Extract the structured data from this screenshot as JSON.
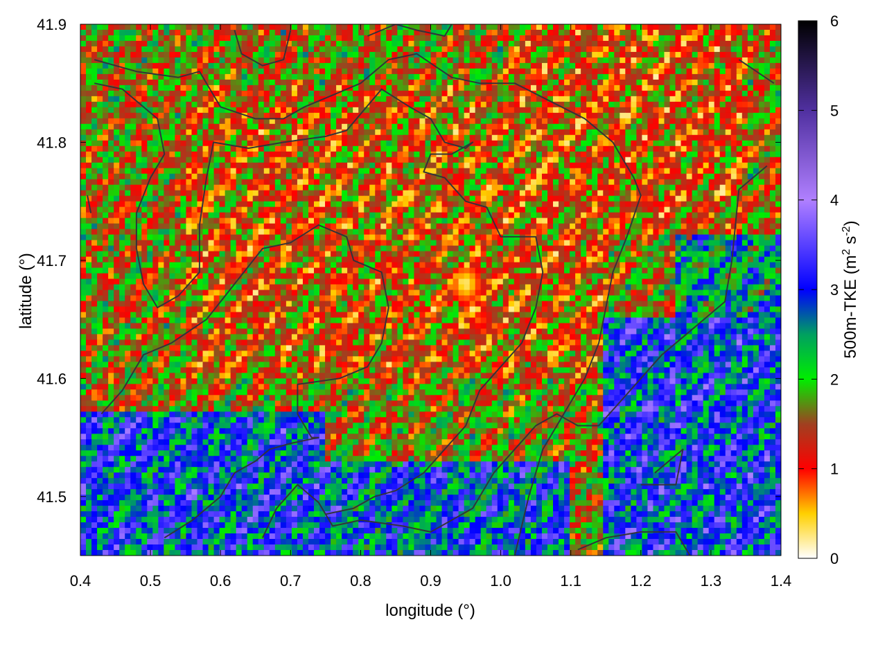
{
  "chart_data": {
    "type": "heatmap",
    "title": "",
    "xlabel": "longitude (°)",
    "ylabel": "latitude (°)",
    "xlim": [
      0.4,
      1.4
    ],
    "ylim": [
      41.45,
      41.9
    ],
    "x_ticks": [
      0.4,
      0.5,
      0.6,
      0.7,
      0.8,
      0.9,
      1.0,
      1.1,
      1.2,
      1.3,
      1.4
    ],
    "x_tick_labels": [
      "0.4",
      "0.5",
      "0.6",
      "0.7",
      "0.8",
      "0.9",
      "1.0",
      "1.1",
      "1.2",
      "1.3",
      "1.4"
    ],
    "y_ticks": [
      41.5,
      41.6,
      41.7,
      41.8,
      41.9
    ],
    "y_tick_labels": [
      "41.5",
      "41.6",
      "41.7",
      "41.8",
      "41.9"
    ],
    "colorbar": {
      "label_main": "500m-TKE (m",
      "label_sup1": "2",
      "label_mid": " s",
      "label_sup2": "-2",
      "label_end": ")",
      "range": [
        0,
        6
      ],
      "ticks": [
        0,
        1,
        2,
        3,
        4,
        5,
        6
      ],
      "tick_labels": [
        "0",
        "1",
        "2",
        "3",
        "4",
        "5",
        "6"
      ],
      "stops": [
        {
          "value": 0.0,
          "color": "#ffffff"
        },
        {
          "value": 0.5,
          "color": "#ffd000"
        },
        {
          "value": 1.0,
          "color": "#ff0000"
        },
        {
          "value": 1.5,
          "color": "#a04020"
        },
        {
          "value": 2.0,
          "color": "#00ee00"
        },
        {
          "value": 2.5,
          "color": "#00a060"
        },
        {
          "value": 3.0,
          "color": "#0000ff"
        },
        {
          "value": 4.0,
          "color": "#b080ff"
        },
        {
          "value": 5.0,
          "color": "#5030a0"
        },
        {
          "value": 6.0,
          "color": "#000000"
        }
      ]
    },
    "field_regions": [
      {
        "lon": [
          0.4,
          1.4
        ],
        "lat": [
          41.45,
          41.9
        ],
        "mean": 1.6
      },
      {
        "lon": [
          0.55,
          1.15
        ],
        "lat": [
          41.6,
          41.85
        ],
        "mean": 1.3
      },
      {
        "lon": [
          1.0,
          1.35
        ],
        "lat": [
          41.72,
          41.9
        ],
        "mean": 1.25
      },
      {
        "lon": [
          0.4,
          0.75
        ],
        "lat": [
          41.45,
          41.57
        ],
        "mean": 2.9
      },
      {
        "lon": [
          0.75,
          1.1
        ],
        "lat": [
          41.45,
          41.53
        ],
        "mean": 2.8
      },
      {
        "lon": [
          1.15,
          1.4
        ],
        "lat": [
          41.45,
          41.65
        ],
        "mean": 2.9
      },
      {
        "lon": [
          1.25,
          1.4
        ],
        "lat": [
          41.65,
          41.72
        ],
        "mean": 2.4
      }
    ],
    "hotspots": [
      {
        "lon": 0.95,
        "lat": 41.68,
        "value": 0.2
      },
      {
        "lon": 0.97,
        "lat": 41.65,
        "value": 0.7
      }
    ],
    "boundaries": [
      [
        [
          0.42,
          41.87
        ],
        [
          0.48,
          41.86
        ],
        [
          0.54,
          41.855
        ],
        [
          0.57,
          41.86
        ],
        [
          0.6,
          41.83
        ],
        [
          0.65,
          41.82
        ],
        [
          0.69,
          41.82
        ],
        [
          0.72,
          41.83
        ],
        [
          0.76,
          41.84
        ],
        [
          0.8,
          41.85
        ],
        [
          0.84,
          41.87
        ],
        [
          0.88,
          41.875
        ],
        [
          0.93,
          41.855
        ],
        [
          0.97,
          41.85
        ],
        [
          1.02,
          41.85
        ],
        [
          1.07,
          41.835
        ],
        [
          1.12,
          41.82
        ],
        [
          1.16,
          41.8
        ],
        [
          1.19,
          41.77
        ],
        [
          1.2,
          41.755
        ],
        [
          1.18,
          41.72
        ],
        [
          1.16,
          41.69
        ],
        [
          1.15,
          41.66
        ],
        [
          1.14,
          41.63
        ],
        [
          1.12,
          41.6
        ],
        [
          1.09,
          41.57
        ],
        [
          1.06,
          41.54
        ],
        [
          1.04,
          41.5
        ],
        [
          1.02,
          41.45
        ]
      ],
      [
        [
          0.42,
          41.85
        ],
        [
          0.46,
          41.845
        ],
        [
          0.51,
          41.82
        ],
        [
          0.52,
          41.79
        ],
        [
          0.5,
          41.77
        ],
        [
          0.48,
          41.74
        ],
        [
          0.48,
          41.71
        ],
        [
          0.49,
          41.68
        ],
        [
          0.51,
          41.66
        ],
        [
          0.54,
          41.67
        ],
        [
          0.57,
          41.69
        ],
        [
          0.57,
          41.73
        ],
        [
          0.58,
          41.77
        ],
        [
          0.59,
          41.8
        ],
        [
          0.64,
          41.795
        ],
        [
          0.69,
          41.8
        ],
        [
          0.75,
          41.805
        ],
        [
          0.78,
          41.81
        ],
        [
          0.83,
          41.845
        ],
        [
          0.87,
          41.83
        ],
        [
          0.9,
          41.82
        ],
        [
          0.92,
          41.8
        ],
        [
          0.95,
          41.795
        ],
        [
          0.96,
          41.8
        ],
        [
          0.93,
          41.79
        ],
        [
          0.9,
          41.79
        ],
        [
          0.89,
          41.775
        ],
        [
          0.92,
          41.77
        ],
        [
          0.95,
          41.75
        ],
        [
          0.98,
          41.745
        ],
        [
          1.0,
          41.72
        ],
        [
          1.05,
          41.72
        ],
        [
          1.06,
          41.69
        ],
        [
          1.05,
          41.66
        ],
        [
          1.03,
          41.63
        ],
        [
          1.0,
          41.61
        ],
        [
          0.97,
          41.59
        ],
        [
          0.95,
          41.56
        ],
        [
          0.92,
          41.54
        ],
        [
          0.89,
          41.52
        ],
        [
          0.85,
          41.505
        ],
        [
          0.82,
          41.5
        ],
        [
          0.79,
          41.49
        ],
        [
          0.75,
          41.485
        ]
      ],
      [
        [
          0.43,
          41.57
        ],
        [
          0.46,
          41.59
        ],
        [
          0.49,
          41.62
        ],
        [
          0.53,
          41.63
        ],
        [
          0.58,
          41.65
        ],
        [
          0.62,
          41.68
        ],
        [
          0.66,
          41.71
        ],
        [
          0.7,
          41.715
        ],
        [
          0.74,
          41.73
        ],
        [
          0.78,
          41.72
        ],
        [
          0.79,
          41.7
        ],
        [
          0.83,
          41.69
        ],
        [
          0.84,
          41.66
        ],
        [
          0.83,
          41.63
        ],
        [
          0.81,
          41.61
        ],
        [
          0.77,
          41.6
        ],
        [
          0.71,
          41.595
        ],
        [
          0.71,
          41.57
        ],
        [
          0.73,
          41.55
        ],
        [
          0.74,
          41.55
        ],
        [
          0.7,
          41.545
        ],
        [
          0.67,
          41.54
        ],
        [
          0.65,
          41.53
        ],
        [
          0.62,
          41.52
        ],
        [
          0.6,
          41.5
        ],
        [
          0.56,
          41.48
        ],
        [
          0.52,
          41.465
        ]
      ],
      [
        [
          0.66,
          41.465
        ],
        [
          0.68,
          41.49
        ],
        [
          0.71,
          41.51
        ],
        [
          0.74,
          41.495
        ],
        [
          0.76,
          41.475
        ],
        [
          0.8,
          41.48
        ],
        [
          0.86,
          41.475
        ],
        [
          0.9,
          41.47
        ],
        [
          0.93,
          41.48
        ],
        [
          0.96,
          41.49
        ],
        [
          0.99,
          41.52
        ],
        [
          1.02,
          41.54
        ],
        [
          1.05,
          41.56
        ],
        [
          1.08,
          41.57
        ],
        [
          1.11,
          41.56
        ],
        [
          1.14,
          41.56
        ],
        [
          1.17,
          41.58
        ],
        [
          1.2,
          41.6
        ],
        [
          1.23,
          41.62
        ],
        [
          1.26,
          41.635
        ],
        [
          1.29,
          41.65
        ],
        [
          1.32,
          41.665
        ],
        [
          1.33,
          41.7
        ],
        [
          1.34,
          41.76
        ],
        [
          1.38,
          41.78
        ]
      ],
      [
        [
          1.11,
          41.455
        ],
        [
          1.15,
          41.465
        ],
        [
          1.2,
          41.47
        ],
        [
          1.25,
          41.47
        ],
        [
          1.27,
          41.45
        ]
      ],
      [
        [
          1.2,
          41.51
        ],
        [
          1.25,
          41.51
        ],
        [
          1.26,
          41.54
        ],
        [
          1.24,
          41.53
        ],
        [
          1.22,
          41.52
        ]
      ],
      [
        [
          0.62,
          41.895
        ],
        [
          0.63,
          41.875
        ],
        [
          0.66,
          41.865
        ],
        [
          0.69,
          41.87
        ],
        [
          0.7,
          41.895
        ]
      ],
      [
        [
          0.81,
          41.89
        ],
        [
          0.85,
          41.9
        ],
        [
          0.88,
          41.895
        ],
        [
          0.92,
          41.89
        ],
        [
          0.93,
          41.9
        ]
      ],
      [
        [
          1.34,
          41.87
        ],
        [
          1.39,
          41.85
        ]
      ],
      [
        [
          0.41,
          41.755
        ],
        [
          0.415,
          41.74
        ]
      ]
    ]
  }
}
